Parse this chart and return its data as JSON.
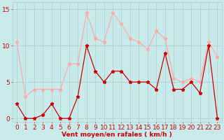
{
  "hours": [
    0,
    1,
    2,
    3,
    4,
    5,
    6,
    7,
    8,
    9,
    10,
    11,
    12,
    13,
    14,
    15,
    16,
    17,
    18,
    19,
    20,
    21,
    22,
    23
  ],
  "wind_avg": [
    2,
    0,
    0,
    0.5,
    2,
    0,
    0,
    3,
    10,
    6.5,
    5,
    6.5,
    6.5,
    5,
    5,
    5,
    4,
    9,
    4,
    4,
    5,
    3.5,
    10,
    0
  ],
  "wind_gust": [
    10.5,
    3,
    4,
    4,
    4,
    4,
    7.5,
    7.5,
    14.5,
    11,
    10.5,
    14.5,
    13,
    11,
    10.5,
    9.5,
    12,
    11,
    5.5,
    5,
    5.5,
    5,
    10.5,
    8.5
  ],
  "wind_avg_color": "#cc0000",
  "wind_gust_color": "#ffaaaa",
  "bg_color": "#c8eaea",
  "grid_color": "#aacccc",
  "axis_color": "#cc0000",
  "xlabel": "Vent moyen/en rafales ( km/h )",
  "ylim": [
    -0.5,
    16
  ],
  "yticks": [
    0,
    5,
    10,
    15
  ],
  "label_fontsize": 6.5
}
